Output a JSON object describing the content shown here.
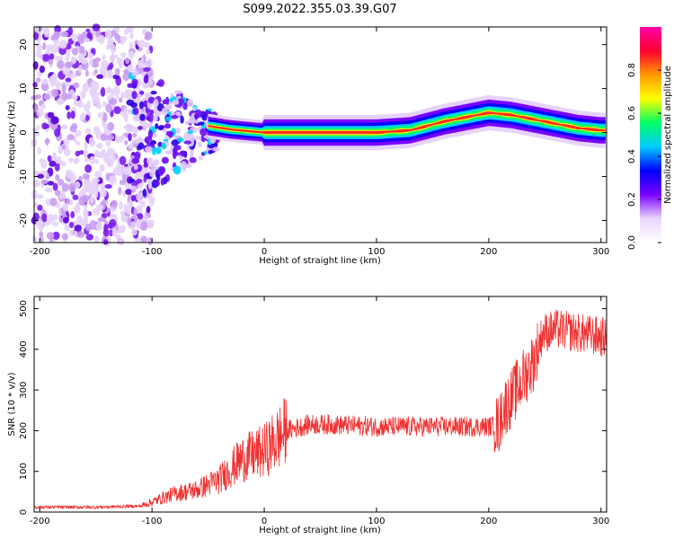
{
  "title": "S099.2022.355.03.39.G07",
  "chart_data": [
    {
      "type": "heatmap",
      "xlabel": "Height of straight line (km)",
      "ylabel": "Frequency (Hz)",
      "xlim": [
        -205,
        305
      ],
      "ylim": [
        -25,
        24
      ],
      "xticks": [
        -200,
        -100,
        0,
        100,
        200,
        300
      ],
      "yticks": [
        -20,
        -10,
        0,
        10,
        20
      ],
      "colorbar": {
        "label": "Normalized spectral amplitude",
        "range": [
          0,
          1
        ],
        "ticks": [
          "0.0",
          "0.2",
          "0.4",
          "0.6",
          "0.8"
        ],
        "colors": [
          "#ffffff",
          "#e9d6fb",
          "#7a00ff",
          "#0000ff",
          "#00ccff",
          "#00ff66",
          "#ffff00",
          "#ff9900",
          "#ff0033",
          "#ff00aa"
        ]
      },
      "ridge_frequency_hz": [
        [
          -50,
          1.5
        ],
        [
          -30,
          0.7
        ],
        [
          0,
          0
        ],
        [
          100,
          0
        ],
        [
          130,
          0.5
        ],
        [
          160,
          2.5
        ],
        [
          200,
          4.5
        ],
        [
          220,
          4
        ],
        [
          240,
          3
        ],
        [
          260,
          2
        ],
        [
          280,
          1
        ],
        [
          300,
          0.5
        ]
      ],
      "noise_region_km": [
        -205,
        -120
      ]
    },
    {
      "type": "line",
      "xlabel": "Height of straight line (km)",
      "ylabel": "SNR (10 * v/v)",
      "xlim": [
        -205,
        305
      ],
      "ylim": [
        0,
        530
      ],
      "xticks": [
        -200,
        -100,
        0,
        100,
        200,
        300
      ],
      "yticks": [
        0,
        100,
        200,
        300,
        400,
        500
      ],
      "color": "#f03030",
      "profile": [
        [
          -205,
          12
        ],
        [
          -150,
          12
        ],
        [
          -110,
          15
        ],
        [
          -100,
          25
        ],
        [
          -80,
          45
        ],
        [
          -60,
          55
        ],
        [
          -40,
          80
        ],
        [
          -20,
          130
        ],
        [
          0,
          150
        ],
        [
          20,
          200
        ],
        [
          40,
          215
        ],
        [
          60,
          215
        ],
        [
          100,
          210
        ],
        [
          150,
          210
        ],
        [
          200,
          210
        ],
        [
          210,
          215
        ],
        [
          212,
          250
        ],
        [
          220,
          280
        ],
        [
          240,
          370
        ],
        [
          248,
          440
        ],
        [
          260,
          450
        ],
        [
          280,
          440
        ],
        [
          300,
          430
        ],
        [
          305,
          430
        ]
      ]
    }
  ]
}
